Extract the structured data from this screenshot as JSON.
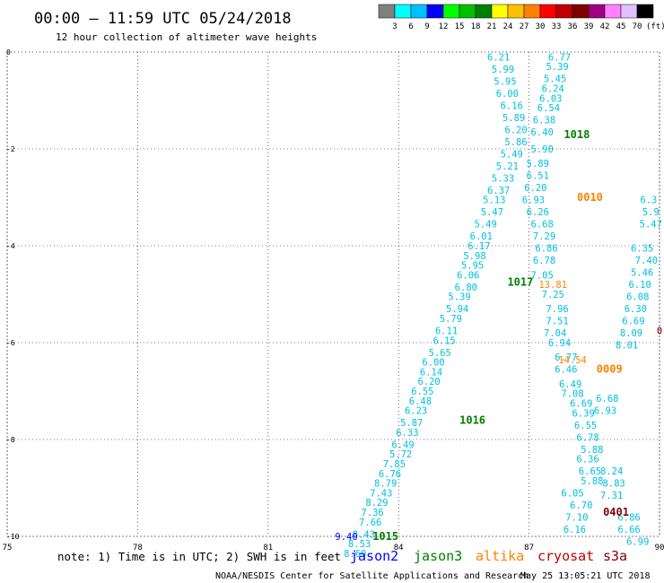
{
  "header": {
    "title": "00:00 – 11:59 UTC 05/24/2018",
    "subtitle": "12 hour collection of altimeter wave heights"
  },
  "colorbar": {
    "unit": "(ft)",
    "labels": [
      "3",
      "6",
      "9",
      "12",
      "15",
      "18",
      "21",
      "24",
      "27",
      "30",
      "33",
      "36",
      "39",
      "42",
      "45",
      "70"
    ],
    "colors": [
      "#808080",
      "#00ffff",
      "#00c0ff",
      "#0000ff",
      "#00ff00",
      "#00c000",
      "#008000",
      "#ffff00",
      "#ffc000",
      "#ff8000",
      "#ff0000",
      "#c00000",
      "#800000",
      "#a00080",
      "#ff80ff",
      "#e0c0ff",
      "#000000"
    ]
  },
  "footer": {
    "note": "note: 1) Time is in UTC; 2) SWH is in feet",
    "credit": "NOAA/NESDIS Center for Satellite Applications and Research",
    "timestamp": "May 25 13:05:21 UTC 2018"
  },
  "legend": [
    {
      "name": "jason2",
      "color": "#0000ff"
    },
    {
      "name": "jason3",
      "color": "#008000"
    },
    {
      "name": "altika",
      "color": "#ff8000"
    },
    {
      "name": "cryosat",
      "color": "#c00000"
    },
    {
      "name": "s3a",
      "color": "#800000"
    }
  ],
  "chart_data": {
    "type": "scatter",
    "title": "00:00 – 11:59 UTC 05/24/2018",
    "subtitle": "12 hour collection of altimeter wave heights",
    "x_ticks": [
      "75",
      "78",
      "81",
      "84",
      "87",
      "90"
    ],
    "y_ticks": [
      "0",
      "-2",
      "-4",
      "-6",
      "-8",
      "-10"
    ],
    "xlim": [
      75,
      90
    ],
    "ylim": [
      -10,
      0
    ],
    "grid": true,
    "series": [
      {
        "name": "jason3",
        "color": "#00c0e0",
        "points": [
          [
            86.3,
            -0.1,
            "6.21"
          ],
          [
            86.4,
            -0.35,
            "5.99"
          ],
          [
            86.45,
            -0.6,
            "5.95"
          ],
          [
            86.5,
            -0.85,
            "6.00"
          ],
          [
            86.6,
            -1.1,
            "6.16"
          ],
          [
            86.65,
            -1.35,
            "5.89"
          ],
          [
            86.7,
            -1.6,
            "6.20"
          ],
          [
            86.7,
            -1.85,
            "5.86"
          ],
          [
            86.6,
            -2.1,
            "5.49"
          ],
          [
            86.5,
            -2.35,
            "5.21"
          ],
          [
            86.4,
            -2.6,
            "5.33"
          ],
          [
            86.3,
            -2.85,
            "6.37"
          ],
          [
            86.2,
            -3.05,
            "5.13"
          ],
          [
            86.15,
            -3.3,
            "5.47"
          ],
          [
            86.0,
            -3.55,
            "5.49"
          ],
          [
            85.9,
            -3.8,
            "6.01"
          ],
          [
            85.85,
            -4.0,
            "6.17"
          ],
          [
            85.75,
            -4.2,
            "5.98"
          ],
          [
            85.7,
            -4.4,
            "5.95"
          ],
          [
            85.6,
            -4.6,
            "6.06"
          ],
          [
            85.55,
            -4.85,
            "6.80"
          ],
          [
            85.4,
            -5.05,
            "5.39"
          ],
          [
            85.35,
            -5.3,
            "5.94"
          ],
          [
            85.2,
            -5.5,
            "5.79"
          ],
          [
            85.1,
            -5.75,
            "6.11"
          ],
          [
            85.05,
            -5.95,
            "6.15"
          ],
          [
            84.95,
            -6.2,
            "5.65"
          ],
          [
            84.8,
            -6.4,
            "6.00"
          ],
          [
            84.75,
            -6.6,
            "6.14"
          ],
          [
            84.7,
            -6.8,
            "6.20"
          ],
          [
            84.55,
            -7.0,
            "6.55"
          ],
          [
            84.5,
            -7.2,
            "6.48"
          ],
          [
            84.4,
            -7.4,
            "6.23"
          ],
          [
            84.3,
            -7.65,
            "5.87"
          ],
          [
            84.2,
            -7.85,
            "6.33"
          ],
          [
            84.1,
            -8.1,
            "6.49"
          ],
          [
            84.05,
            -8.3,
            "5.72"
          ],
          [
            83.9,
            -8.5,
            "7.85"
          ],
          [
            83.8,
            -8.7,
            "6.76"
          ],
          [
            83.7,
            -8.9,
            "8.79"
          ],
          [
            83.6,
            -9.1,
            "7.43"
          ],
          [
            83.5,
            -9.3,
            "8.29"
          ],
          [
            83.4,
            -9.5,
            "7.36"
          ],
          [
            83.35,
            -9.7,
            "7.66"
          ],
          [
            83.2,
            -9.95,
            "8.43"
          ],
          [
            83.1,
            -10.15,
            "8.53"
          ],
          [
            83.0,
            -10.35,
            "8.69"
          ],
          [
            87.7,
            -0.1,
            "6.77"
          ],
          [
            87.65,
            -0.3,
            "5.39"
          ],
          [
            87.6,
            -0.55,
            "5.45"
          ],
          [
            87.55,
            -0.75,
            "6.24"
          ],
          [
            87.5,
            -0.95,
            "6.03"
          ],
          [
            87.45,
            -1.15,
            "6.54"
          ],
          [
            87.35,
            -1.4,
            "6.38"
          ],
          [
            87.3,
            -1.65,
            "6.40"
          ],
          [
            87.3,
            -2.0,
            "5.90"
          ],
          [
            87.2,
            -2.3,
            "5.89"
          ],
          [
            87.2,
            -2.55,
            "6.51"
          ],
          [
            87.15,
            -2.8,
            "6.20"
          ],
          [
            87.1,
            -3.05,
            "6.93"
          ],
          [
            87.2,
            -3.3,
            "6.26"
          ],
          [
            87.3,
            -3.55,
            "6.68"
          ],
          [
            87.35,
            -3.8,
            "7.29"
          ],
          [
            87.4,
            -4.05,
            "6.86"
          ],
          [
            87.35,
            -4.3,
            "6.78"
          ],
          [
            87.3,
            -4.6,
            "7.05"
          ],
          [
            87.55,
            -5.0,
            "7.25"
          ],
          [
            87.65,
            -5.3,
            "7.96"
          ],
          [
            87.65,
            -5.55,
            "7.51"
          ],
          [
            87.6,
            -5.8,
            "7.04"
          ],
          [
            87.7,
            -6.0,
            "6.94"
          ],
          [
            87.85,
            -6.3,
            "6.77"
          ],
          [
            87.85,
            -6.55,
            "6.46"
          ],
          [
            87.95,
            -6.85,
            "6.49"
          ],
          [
            88.0,
            -7.05,
            "7.08"
          ],
          [
            88.2,
            -7.25,
            "6.69"
          ],
          [
            88.25,
            -7.45,
            "6.39"
          ],
          [
            88.3,
            -7.7,
            "6.55"
          ],
          [
            88.35,
            -7.95,
            "6.78"
          ],
          [
            88.45,
            -8.2,
            "5.88"
          ],
          [
            88.35,
            -8.4,
            "6.36"
          ],
          [
            88.4,
            -8.65,
            "6.65"
          ],
          [
            88.45,
            -8.85,
            "5.88"
          ],
          [
            88.0,
            -9.1,
            "6.05"
          ],
          [
            88.2,
            -9.35,
            "6.70"
          ],
          [
            88.1,
            -9.6,
            "7.10"
          ],
          [
            88.05,
            -9.85,
            "6.16"
          ],
          [
            89.6,
            -4.05,
            "6.35"
          ],
          [
            89.7,
            -4.3,
            "7.40"
          ],
          [
            89.6,
            -4.55,
            "5.46"
          ],
          [
            89.55,
            -4.8,
            "6.10"
          ],
          [
            89.5,
            -5.05,
            "6.08"
          ],
          [
            89.45,
            -5.3,
            "6.30"
          ],
          [
            89.4,
            -5.55,
            "6.69"
          ],
          [
            89.35,
            -5.8,
            "8.09"
          ],
          [
            89.25,
            -6.05,
            "8.01"
          ],
          [
            88.8,
            -7.15,
            "6.68"
          ],
          [
            88.75,
            -7.4,
            "6.93"
          ],
          [
            88.9,
            -8.65,
            "8.24"
          ],
          [
            88.95,
            -8.9,
            "8.83"
          ],
          [
            88.9,
            -9.15,
            "7.31"
          ],
          [
            89.3,
            -9.6,
            "6.86"
          ],
          [
            89.3,
            -9.85,
            "6.66"
          ],
          [
            89.5,
            -10.1,
            "6.99"
          ],
          [
            89.75,
            -3.05,
            "6.3"
          ],
          [
            89.8,
            -3.3,
            "5.9"
          ],
          [
            89.8,
            -3.55,
            "5.47"
          ]
        ]
      },
      {
        "name": "jason2",
        "color": "#0000ff",
        "points": [
          [
            82.8,
            -10.0,
            "9.40"
          ]
        ]
      },
      {
        "name": "jason3",
        "color": "#008000",
        "points": [
          [
            88.1,
            -1.7,
            "1018"
          ],
          [
            86.8,
            -4.75,
            "1017"
          ],
          [
            85.7,
            -7.6,
            "1016"
          ],
          [
            83.7,
            -10.0,
            "1015"
          ]
        ]
      },
      {
        "name": "altika",
        "color": "#ff8000",
        "points": [
          [
            88.4,
            -3.0,
            "0010"
          ],
          [
            88.85,
            -6.55,
            "0009"
          ],
          [
            88.0,
            -6.35,
            "14.54"
          ],
          [
            87.55,
            -4.8,
            "13.81"
          ]
        ]
      },
      {
        "name": "s3a",
        "color": "#800000",
        "points": [
          [
            89.0,
            -9.5,
            "0401"
          ],
          [
            90.0,
            -5.75,
            "0"
          ]
        ]
      }
    ]
  }
}
